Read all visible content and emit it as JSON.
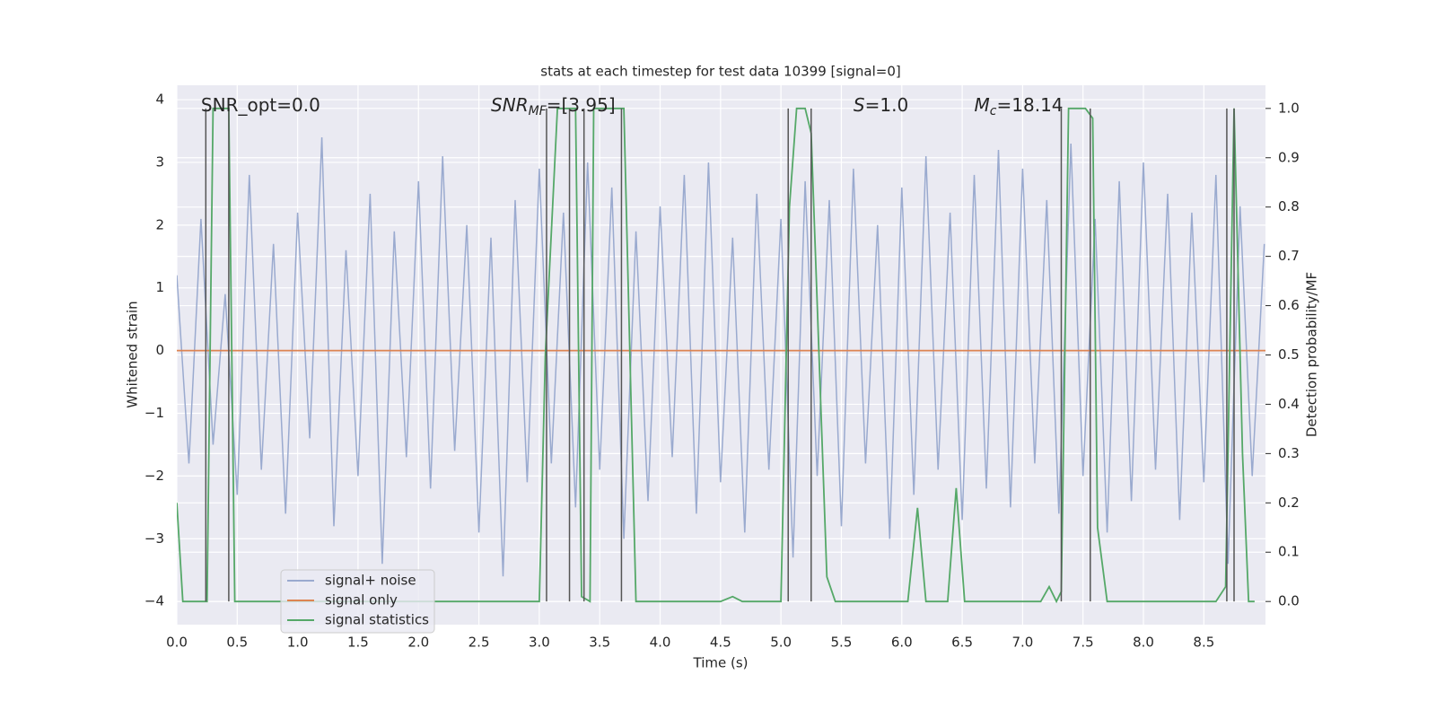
{
  "chart_data": {
    "type": "line",
    "title": "stats at each timestep for test data 10399 [signal=0]",
    "xlabel": "Time (s)",
    "ylabel": "Whitened strain",
    "y2label": "Detection probability/MF",
    "annotations": [
      {
        "base": "SNR_opt=0.0",
        "x": 0.2,
        "y": 3.9
      },
      {
        "base": "SNR",
        "sub": "MF",
        "rest": "=[3.95]",
        "x": 2.6,
        "y": 3.9
      },
      {
        "base": "S",
        "rest": "=1.0",
        "x": 5.6,
        "y": 3.9
      },
      {
        "base": "M",
        "sub": "c",
        "rest": "=18.14",
        "x": 6.6,
        "y": 3.9
      }
    ],
    "xlim": [
      0,
      9.01
    ],
    "ylim": [
      -4.37,
      4.23
    ],
    "y2lim": [
      -0.047,
      1.047
    ],
    "xticks": [
      {
        "value": 0,
        "label": "0.0"
      },
      0.5,
      {
        "value": 1,
        "label": "1.0"
      },
      1.5,
      {
        "value": 2,
        "label": "2.0"
      },
      2.5,
      {
        "value": 3,
        "label": "3.0"
      },
      3.5,
      {
        "value": 4,
        "label": "4.0"
      },
      4.5,
      {
        "value": 5,
        "label": "5.0"
      },
      5.5,
      {
        "value": 6,
        "label": "6.0"
      },
      6.5,
      {
        "value": 7,
        "label": "7.0"
      },
      7.5,
      {
        "value": 8,
        "label": "8.0"
      },
      8.5
    ],
    "yticks": [
      {
        "value": -4,
        "label": "−4"
      },
      {
        "value": -3,
        "label": "−3"
      },
      {
        "value": -2,
        "label": "−2"
      },
      {
        "value": -1,
        "label": "−1"
      },
      0,
      1,
      2,
      3,
      4
    ],
    "y2ticks": [
      {
        "value": 0,
        "label": "0.0"
      },
      0.1,
      0.2,
      0.3,
      0.4,
      0.5,
      0.6,
      0.7,
      0.8,
      0.9,
      {
        "value": 1,
        "label": "1.0"
      }
    ],
    "grid": true,
    "legend": "lower left",
    "vlines": {
      "color": "#555555",
      "x": [
        0.24,
        0.43,
        3.06,
        3.25,
        3.37,
        3.68,
        5.06,
        5.25,
        7.32,
        7.56,
        8.69,
        8.75
      ],
      "ymin": 0,
      "ymax": 1.0
    },
    "series": [
      {
        "name": "signal+ noise",
        "color": "#9aaacf",
        "x": [
          0,
          0.1,
          0.2,
          0.3,
          0.4,
          0.5,
          0.6,
          0.7,
          0.8,
          0.9,
          1,
          1.1,
          1.2,
          1.3,
          1.4,
          1.5,
          1.6,
          1.7,
          1.8,
          1.9,
          2,
          2.1,
          2.2,
          2.3,
          2.4,
          2.5,
          2.6,
          2.7,
          2.8,
          2.9,
          3,
          3.1,
          3.2,
          3.3,
          3.4,
          3.5,
          3.6,
          3.7,
          3.8,
          3.9,
          4,
          4.1,
          4.2,
          4.3,
          4.4,
          4.5,
          4.6,
          4.7,
          4.8,
          4.9,
          5,
          5.1,
          5.2,
          5.3,
          5.4,
          5.5,
          5.6,
          5.7,
          5.8,
          5.9,
          6,
          6.1,
          6.2,
          6.3,
          6.4,
          6.5,
          6.6,
          6.7,
          6.8,
          6.9,
          7,
          7.1,
          7.2,
          7.3,
          7.4,
          7.5,
          7.6,
          7.7,
          7.8,
          7.9,
          8,
          8.1,
          8.2,
          8.3,
          8.4,
          8.5,
          8.6,
          8.7,
          8.8,
          8.9,
          9
        ],
        "values": [
          1.2,
          -1.8,
          2.1,
          -1.5,
          0.9,
          -2.3,
          2.8,
          -1.9,
          1.7,
          -2.6,
          2.2,
          -1.4,
          3.4,
          -2.8,
          1.6,
          -2.0,
          2.5,
          -3.4,
          1.9,
          -1.7,
          2.7,
          -2.2,
          3.1,
          -1.6,
          2.0,
          -2.9,
          1.8,
          -3.6,
          2.4,
          -2.1,
          2.9,
          -1.8,
          2.2,
          -2.5,
          3.0,
          -1.9,
          2.6,
          -3.0,
          1.9,
          -2.4,
          2.3,
          -1.7,
          2.8,
          -2.6,
          3.0,
          -2.1,
          1.8,
          -2.9,
          2.5,
          -1.9,
          2.1,
          -3.3,
          2.7,
          -2.0,
          2.4,
          -2.8,
          2.9,
          -1.8,
          2.0,
          -3.0,
          2.6,
          -2.3,
          3.1,
          -1.9,
          2.2,
          -2.7,
          2.8,
          -2.2,
          3.2,
          -2.5,
          2.9,
          -1.8,
          2.4,
          -2.6,
          3.3,
          -2.0,
          2.1,
          -2.9,
          2.7,
          -2.4,
          3.0,
          -1.9,
          2.5,
          -2.7,
          2.2,
          -2.1,
          2.8,
          -3.4,
          2.3,
          -2.0,
          1.7
        ]
      },
      {
        "name": "signal only",
        "color": "#dd8452",
        "x": [
          0,
          9.01
        ],
        "values": [
          0,
          0
        ]
      },
      {
        "name": "signal statistics",
        "color": "#55a868",
        "axis": "y2",
        "x": [
          0,
          0.05,
          0.25,
          0.3,
          0.43,
          0.48,
          0.55,
          3.0,
          3.05,
          3.15,
          3.3,
          3.35,
          3.42,
          3.45,
          3.7,
          3.8,
          4.5,
          4.6,
          4.68,
          5.0,
          5.07,
          5.13,
          5.2,
          5.25,
          5.38,
          5.45,
          6.05,
          6.13,
          6.2,
          6.38,
          6.45,
          6.52,
          6.6,
          7.15,
          7.22,
          7.28,
          7.32,
          7.38,
          7.52,
          7.58,
          7.62,
          7.7,
          8.6,
          8.68,
          8.75,
          8.82,
          8.87,
          8.92
        ],
        "values": [
          0.2,
          0,
          0,
          1.0,
          1.0,
          0,
          0,
          0,
          0.5,
          1.0,
          1.0,
          0.01,
          0,
          1.0,
          1.0,
          0,
          0,
          0.01,
          0,
          0,
          0.8,
          1.0,
          1.0,
          0.95,
          0.05,
          0,
          0,
          0.19,
          0,
          0,
          0.23,
          0,
          0,
          0,
          0.03,
          0,
          0.02,
          1.0,
          1.0,
          0.98,
          0.15,
          0,
          0,
          0.03,
          1.0,
          0.3,
          0,
          0
        ]
      }
    ]
  }
}
